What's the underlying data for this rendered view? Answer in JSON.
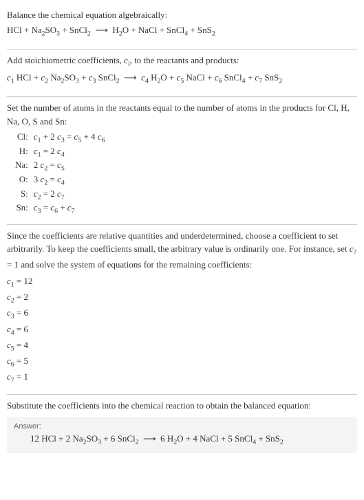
{
  "colors": {
    "text": "#333333",
    "rule": "#cccccc",
    "answer_bg": "#f4f4f4",
    "answer_label": "#666666"
  },
  "s1": {
    "l1": "Balance the chemical equation algebraically:",
    "eq": "HCl + Na<sub>2</sub>SO<sub>3</sub> + SnCl<sub>2</sub>&nbsp;&nbsp;⟶&nbsp;&nbsp;H<sub>2</sub>O + NaCl + SnCl<sub>4</sub> + SnS<sub>2</sub>"
  },
  "s2": {
    "l1": "Add stoichiometric coefficients, <span class=\"ci\">c<sub>i</sub></span>, to the reactants and products:",
    "eq": "<span class=\"ci\">c</span><sub>1</sub> HCl + <span class=\"ci\">c</span><sub>2</sub> Na<sub>2</sub>SO<sub>3</sub> + <span class=\"ci\">c</span><sub>3</sub> SnCl<sub>2</sub>&nbsp;&nbsp;⟶&nbsp;&nbsp;<span class=\"ci\">c</span><sub>4</sub> H<sub>2</sub>O + <span class=\"ci\">c</span><sub>5</sub> NaCl + <span class=\"ci\">c</span><sub>6</sub> SnCl<sub>4</sub> + <span class=\"ci\">c</span><sub>7</sub> SnS<sub>2</sub>"
  },
  "s3": {
    "l1": "Set the number of atoms in the reactants equal to the number of atoms in the products for Cl, H, Na, O, S and Sn:",
    "rows": [
      {
        "el": "Cl:",
        "eq": "<span class=\"ci\">c</span><sub>1</sub> + 2 <span class=\"ci\">c</span><sub>3</sub> = <span class=\"ci\">c</span><sub>5</sub> + 4 <span class=\"ci\">c</span><sub>6</sub>"
      },
      {
        "el": "H:",
        "eq": "<span class=\"ci\">c</span><sub>1</sub> = 2 <span class=\"ci\">c</span><sub>4</sub>"
      },
      {
        "el": "Na:",
        "eq": "2 <span class=\"ci\">c</span><sub>2</sub> = <span class=\"ci\">c</span><sub>5</sub>"
      },
      {
        "el": "O:",
        "eq": "3 <span class=\"ci\">c</span><sub>2</sub> = <span class=\"ci\">c</span><sub>4</sub>"
      },
      {
        "el": "S:",
        "eq": "<span class=\"ci\">c</span><sub>2</sub> = 2 <span class=\"ci\">c</span><sub>7</sub>"
      },
      {
        "el": "Sn:",
        "eq": "<span class=\"ci\">c</span><sub>3</sub> = <span class=\"ci\">c</span><sub>6</sub> + <span class=\"ci\">c</span><sub>7</sub>"
      }
    ]
  },
  "s4": {
    "l1": "Since the coefficients are relative quantities and underdetermined, choose a coefficient to set arbitrarily. To keep the coefficients small, the arbitrary value is ordinarily one. For instance, set <span class=\"ci\">c</span><sub>7</sub> = 1 and solve the system of equations for the remaining coefficients:",
    "coeffs": [
      "<span class=\"ci\">c</span><sub>1</sub> = 12",
      "<span class=\"ci\">c</span><sub>2</sub> = 2",
      "<span class=\"ci\">c</span><sub>3</sub> = 6",
      "<span class=\"ci\">c</span><sub>4</sub> = 6",
      "<span class=\"ci\">c</span><sub>5</sub> = 4",
      "<span class=\"ci\">c</span><sub>6</sub> = 5",
      "<span class=\"ci\">c</span><sub>7</sub> = 1"
    ]
  },
  "s5": {
    "l1": "Substitute the coefficients into the chemical reaction to obtain the balanced equation:",
    "answer_label": "Answer:",
    "answer_eq": "12 HCl + 2 Na<sub>2</sub>SO<sub>3</sub> + 6 SnCl<sub>2</sub>&nbsp;&nbsp;⟶&nbsp;&nbsp;6 H<sub>2</sub>O + 4 NaCl + 5 SnCl<sub>4</sub> + SnS<sub>2</sub>"
  }
}
